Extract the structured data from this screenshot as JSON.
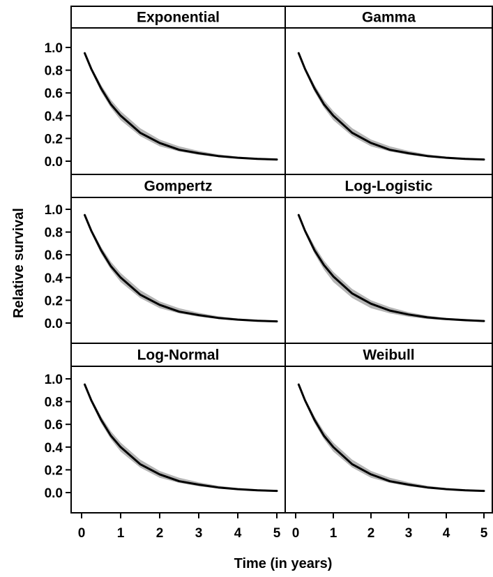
{
  "chart_data": {
    "type": "line",
    "ylabel": "Relative survival",
    "xlabel": "Time (in years)",
    "xlim": [
      0,
      5
    ],
    "ylim": [
      -0.05,
      1.08
    ],
    "x_ticks": [
      0,
      1,
      2,
      3,
      4,
      5
    ],
    "y_ticks": [
      0.0,
      0.2,
      0.4,
      0.6,
      0.8,
      1.0
    ],
    "x_tick_labels": [
      "0",
      "1",
      "2",
      "3",
      "4",
      "5"
    ],
    "y_tick_labels": [
      "0.0",
      "0.2",
      "0.4",
      "0.6",
      "0.8",
      "1.0"
    ],
    "grid": false,
    "colors": {
      "line": "#000000",
      "band": "#b5b5b5",
      "frame": "#000000"
    },
    "x": [
      0.08,
      0.25,
      0.5,
      0.75,
      1.0,
      1.5,
      2.0,
      2.5,
      3.0,
      3.5,
      4.0,
      4.5,
      5.0
    ],
    "panels": [
      {
        "name": "Exponential",
        "values": [
          0.95,
          0.81,
          0.64,
          0.5,
          0.4,
          0.25,
          0.16,
          0.1,
          0.07,
          0.045,
          0.03,
          0.02,
          0.015
        ],
        "lower": [
          0.95,
          0.79,
          0.61,
          0.47,
          0.36,
          0.22,
          0.13,
          0.085,
          0.055,
          0.035,
          0.025,
          0.015,
          0.01
        ],
        "upper": [
          0.95,
          0.83,
          0.67,
          0.54,
          0.44,
          0.29,
          0.19,
          0.13,
          0.09,
          0.06,
          0.04,
          0.03,
          0.02
        ]
      },
      {
        "name": "Gamma",
        "values": [
          0.95,
          0.81,
          0.64,
          0.5,
          0.4,
          0.25,
          0.16,
          0.1,
          0.07,
          0.045,
          0.03,
          0.02,
          0.015
        ],
        "lower": [
          0.95,
          0.79,
          0.61,
          0.47,
          0.36,
          0.22,
          0.13,
          0.085,
          0.055,
          0.035,
          0.025,
          0.015,
          0.01
        ],
        "upper": [
          0.95,
          0.83,
          0.67,
          0.54,
          0.44,
          0.29,
          0.19,
          0.13,
          0.09,
          0.06,
          0.04,
          0.03,
          0.02
        ]
      },
      {
        "name": "Gompertz",
        "values": [
          0.95,
          0.81,
          0.64,
          0.5,
          0.4,
          0.25,
          0.16,
          0.1,
          0.07,
          0.045,
          0.03,
          0.02,
          0.015
        ],
        "lower": [
          0.95,
          0.79,
          0.61,
          0.47,
          0.36,
          0.22,
          0.13,
          0.085,
          0.055,
          0.035,
          0.025,
          0.015,
          0.01
        ],
        "upper": [
          0.95,
          0.83,
          0.67,
          0.54,
          0.44,
          0.29,
          0.19,
          0.13,
          0.09,
          0.06,
          0.04,
          0.03,
          0.02
        ]
      },
      {
        "name": "Log-Logistic",
        "values": [
          0.95,
          0.81,
          0.64,
          0.51,
          0.41,
          0.26,
          0.17,
          0.11,
          0.075,
          0.05,
          0.035,
          0.025,
          0.018
        ],
        "lower": [
          0.95,
          0.79,
          0.61,
          0.47,
          0.36,
          0.22,
          0.13,
          0.085,
          0.055,
          0.035,
          0.025,
          0.015,
          0.01
        ],
        "upper": [
          0.95,
          0.83,
          0.68,
          0.55,
          0.45,
          0.3,
          0.2,
          0.14,
          0.095,
          0.065,
          0.045,
          0.035,
          0.025
        ]
      },
      {
        "name": "Log-Normal",
        "values": [
          0.95,
          0.81,
          0.64,
          0.5,
          0.4,
          0.25,
          0.16,
          0.1,
          0.07,
          0.045,
          0.03,
          0.02,
          0.015
        ],
        "lower": [
          0.95,
          0.79,
          0.61,
          0.47,
          0.36,
          0.22,
          0.13,
          0.085,
          0.055,
          0.035,
          0.025,
          0.015,
          0.01
        ],
        "upper": [
          0.95,
          0.83,
          0.67,
          0.54,
          0.44,
          0.29,
          0.19,
          0.13,
          0.09,
          0.06,
          0.04,
          0.03,
          0.02
        ]
      },
      {
        "name": "Weibull",
        "values": [
          0.95,
          0.81,
          0.64,
          0.5,
          0.4,
          0.25,
          0.16,
          0.1,
          0.07,
          0.045,
          0.03,
          0.02,
          0.015
        ],
        "lower": [
          0.95,
          0.79,
          0.61,
          0.47,
          0.36,
          0.22,
          0.13,
          0.085,
          0.055,
          0.035,
          0.025,
          0.015,
          0.01
        ],
        "upper": [
          0.95,
          0.83,
          0.67,
          0.54,
          0.44,
          0.29,
          0.19,
          0.13,
          0.09,
          0.06,
          0.04,
          0.03,
          0.02
        ]
      }
    ]
  }
}
